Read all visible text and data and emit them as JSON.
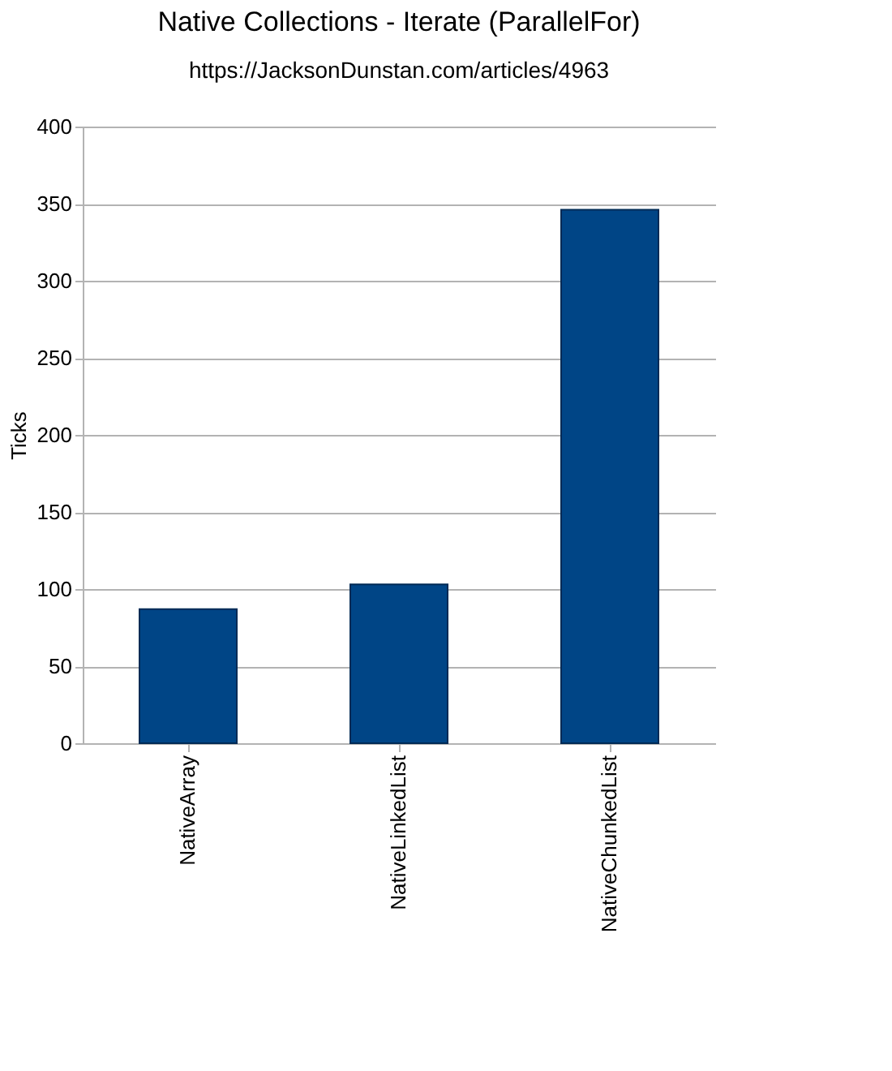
{
  "chart_data": {
    "type": "bar",
    "title": "Native Collections - Iterate (ParallelFor)",
    "subtitle": "https://JacksonDunstan.com/articles/4963",
    "ylabel": "Ticks",
    "categories": [
      "NativeArray",
      "NativeLinkedList",
      "NativeChunkedList"
    ],
    "values": [
      87,
      103,
      346
    ],
    "color": "#004586",
    "ylim": [
      0,
      400
    ],
    "yticks": [
      0,
      50,
      100,
      150,
      200,
      250,
      300,
      350,
      400
    ],
    "grid": "y"
  }
}
